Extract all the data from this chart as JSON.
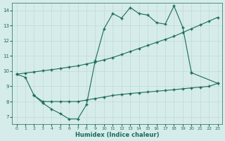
{
  "xlabel": "Humidex (Indice chaleur)",
  "bg_color": "#d6ecea",
  "grid_color": "#c0d8d8",
  "line_color": "#1a6b5a",
  "ylim": [
    6.5,
    14.5
  ],
  "xlim": [
    -0.5,
    23.5
  ],
  "yticks": [
    7,
    8,
    9,
    10,
    11,
    12,
    13,
    14
  ],
  "xticks": [
    0,
    1,
    2,
    3,
    4,
    5,
    6,
    7,
    8,
    9,
    10,
    11,
    12,
    13,
    14,
    15,
    16,
    17,
    18,
    19,
    20,
    21,
    22,
    23
  ],
  "line_jagged_x": [
    0,
    1,
    2,
    3,
    4,
    5,
    6,
    7,
    8,
    9,
    10,
    11,
    12,
    13,
    14,
    15,
    16,
    17,
    18,
    19,
    20,
    23
  ],
  "line_jagged_y": [
    9.8,
    9.6,
    8.4,
    7.9,
    7.5,
    7.2,
    6.85,
    6.85,
    7.8,
    10.7,
    12.8,
    13.8,
    13.5,
    14.2,
    13.8,
    13.7,
    13.2,
    13.1,
    14.3,
    12.9,
    9.9,
    9.2
  ],
  "line_top_x": [
    0,
    1,
    2,
    3,
    4,
    5,
    6,
    7,
    8,
    9,
    10,
    11,
    12,
    13,
    14,
    15,
    16,
    17,
    18,
    19,
    20,
    21,
    22,
    23
  ],
  "line_top_y": [
    9.8,
    9.88,
    9.95,
    10.03,
    10.1,
    10.18,
    10.27,
    10.35,
    10.48,
    10.6,
    10.75,
    10.9,
    11.1,
    11.3,
    11.5,
    11.7,
    11.9,
    12.1,
    12.3,
    12.55,
    12.8,
    13.05,
    13.3,
    13.55
  ],
  "line_bot_x": [
    2,
    3,
    4,
    5,
    6,
    7,
    8,
    9,
    10,
    11,
    12,
    13,
    14,
    15,
    16,
    17,
    18,
    19,
    20,
    21,
    22,
    23
  ],
  "line_bot_y": [
    8.4,
    8.0,
    8.0,
    8.0,
    8.0,
    8.0,
    8.1,
    8.2,
    8.3,
    8.4,
    8.47,
    8.53,
    8.58,
    8.63,
    8.68,
    8.73,
    8.78,
    8.84,
    8.9,
    8.95,
    9.0,
    9.2
  ]
}
